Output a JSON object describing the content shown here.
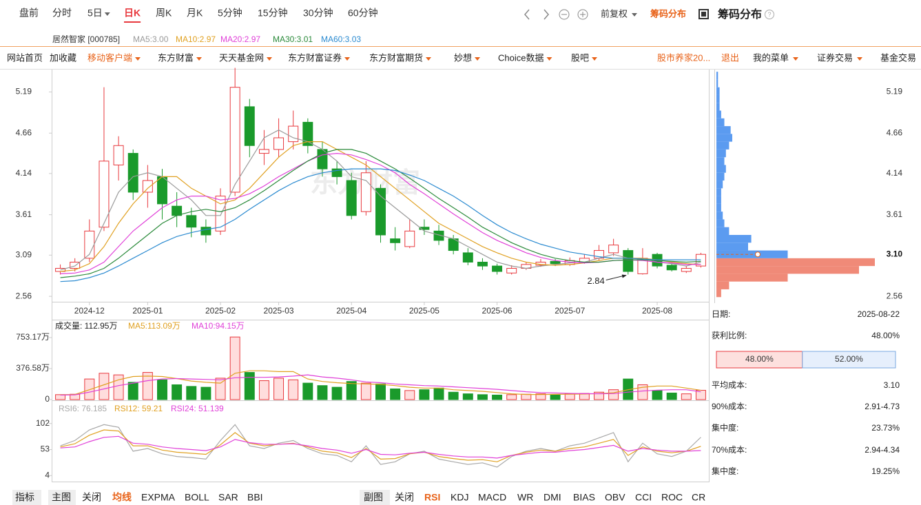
{
  "tabs": {
    "items": [
      "盘前",
      "分时",
      "5日",
      "日K",
      "周K",
      "月K",
      "5分钟",
      "15分钟",
      "30分钟",
      "60分钟"
    ],
    "active": 3
  },
  "toolbar": {
    "adjust": "前复权",
    "chip_toggle": "筹码分布",
    "panel_title": "筹码分布"
  },
  "stock": "居然智家 [000785]",
  "nav": {
    "left": [
      "网站首页",
      "加收藏",
      "移动客户端",
      "东方财富",
      "天天基金网",
      "东方财富证券",
      "东方财富期货",
      "妙想",
      "Choice数据",
      "股吧"
    ],
    "right": [
      "股市养家20...",
      "退出",
      "我的菜单",
      "证券交易",
      "基金交易"
    ]
  },
  "chart_data": [
    {
      "type": "candlestick",
      "watermark": "东方财富",
      "xlim": [
        -0.5,
        44.5
      ],
      "xticks": [
        {
          "value": 2,
          "label": "2024-12"
        },
        {
          "value": 6,
          "label": "2025-01"
        },
        {
          "value": 11,
          "label": "2025-02"
        },
        {
          "value": 15,
          "label": "2025-03"
        },
        {
          "value": 20,
          "label": "2025-04"
        },
        {
          "value": 25,
          "label": "2025-05"
        },
        {
          "value": 30,
          "label": "2025-06"
        },
        {
          "value": 35,
          "label": "2025-07"
        },
        {
          "value": 41,
          "label": "2025-08"
        }
      ],
      "ylim": [
        2.49,
        5.46
      ],
      "yticks": [
        2.56,
        3.09,
        3.61,
        4.14,
        4.66,
        5.19
      ],
      "grid": false,
      "up_color": "#e8383d",
      "down_color": "#1a9a2b",
      "open": [
        2.88,
        2.92,
        3.05,
        3.45,
        4.25,
        4.4,
        3.9,
        4.1,
        3.72,
        3.6,
        3.45,
        3.4,
        3.9,
        5.0,
        4.4,
        4.45,
        4.55,
        4.8,
        4.45,
        4.2,
        4.05,
        3.65,
        3.95,
        3.3,
        3.2,
        3.45,
        3.4,
        3.3,
        3.12,
        3.0,
        2.95,
        2.86,
        2.92,
        2.96,
        3.01,
        2.97,
        3.0,
        3.05,
        3.12,
        3.15,
        2.85,
        3.1,
        2.96,
        2.88,
        2.95
      ],
      "high": [
        2.97,
        3.05,
        3.55,
        5.25,
        4.62,
        4.45,
        4.25,
        4.2,
        3.9,
        3.7,
        3.55,
        3.95,
        5.5,
        5.1,
        4.7,
        4.85,
        4.95,
        4.85,
        4.55,
        4.3,
        4.15,
        4.3,
        4.0,
        3.45,
        3.55,
        3.55,
        3.48,
        3.35,
        3.18,
        3.05,
        2.98,
        2.96,
        3.0,
        3.04,
        3.04,
        3.06,
        3.1,
        3.22,
        3.3,
        3.18,
        3.18,
        3.12,
        2.98,
        2.95,
        3.12
      ],
      "low": [
        2.84,
        2.88,
        3.0,
        3.4,
        4.05,
        3.8,
        3.7,
        3.55,
        3.45,
        3.32,
        3.25,
        3.35,
        3.85,
        4.35,
        4.25,
        4.35,
        4.45,
        4.4,
        4.1,
        4.0,
        3.55,
        3.6,
        3.25,
        3.15,
        3.18,
        3.35,
        3.22,
        3.1,
        2.96,
        2.9,
        2.84,
        2.84,
        2.9,
        2.94,
        2.95,
        2.95,
        2.98,
        3.02,
        3.08,
        2.84,
        2.84,
        2.92,
        2.88,
        2.86,
        2.93
      ],
      "close": [
        2.92,
        3.0,
        3.4,
        4.3,
        4.5,
        3.9,
        4.05,
        3.75,
        3.6,
        3.45,
        3.35,
        3.85,
        5.25,
        4.5,
        4.45,
        4.6,
        4.75,
        4.5,
        4.2,
        4.1,
        3.6,
        4.15,
        3.35,
        3.25,
        3.4,
        3.42,
        3.28,
        3.15,
        3.0,
        2.95,
        2.88,
        2.92,
        2.97,
        3.0,
        2.98,
        3.02,
        3.05,
        3.15,
        3.22,
        2.88,
        3.05,
        2.95,
        2.9,
        2.92,
        3.1
      ],
      "ma": [
        {
          "label": "MA5:3.00",
          "color": "#9a9a9a",
          "values": [
            2.9,
            2.95,
            3.1,
            3.5,
            3.9,
            4.1,
            4.15,
            4.1,
            3.95,
            3.8,
            3.6,
            3.6,
            4.0,
            4.3,
            4.6,
            4.7,
            4.6,
            4.55,
            4.45,
            4.3,
            4.1,
            4.05,
            3.85,
            3.7,
            3.55,
            3.4,
            3.35,
            3.3,
            3.2,
            3.1,
            3.0,
            2.95,
            2.92,
            2.95,
            2.97,
            2.99,
            3.0,
            3.05,
            3.1,
            3.05,
            3.05,
            3.0,
            2.98,
            2.95,
            3.0
          ]
        },
        {
          "label": "MA10:2.97",
          "color": "#e0a020",
          "values": [
            2.88,
            2.9,
            2.98,
            3.2,
            3.5,
            3.75,
            3.95,
            4.1,
            4.1,
            3.95,
            3.85,
            3.75,
            3.8,
            3.95,
            4.15,
            4.35,
            4.5,
            4.55,
            4.55,
            4.45,
            4.35,
            4.25,
            4.1,
            3.95,
            3.8,
            3.65,
            3.5,
            3.4,
            3.3,
            3.2,
            3.12,
            3.05,
            3.0,
            2.97,
            2.96,
            2.97,
            2.99,
            3.02,
            3.05,
            3.05,
            3.05,
            3.03,
            3.0,
            2.98,
            2.97
          ]
        },
        {
          "label": "MA20:2.97",
          "color": "#e040d8",
          "values": [
            2.85,
            2.86,
            2.9,
            3.0,
            3.2,
            3.4,
            3.55,
            3.7,
            3.8,
            3.85,
            3.85,
            3.8,
            3.82,
            3.88,
            3.98,
            4.1,
            4.2,
            4.3,
            4.38,
            4.4,
            4.38,
            4.32,
            4.25,
            4.15,
            4.0,
            3.88,
            3.75,
            3.62,
            3.5,
            3.38,
            3.28,
            3.2,
            3.12,
            3.06,
            3.02,
            3.0,
            2.99,
            3.0,
            3.02,
            3.03,
            3.02,
            3.0,
            2.99,
            2.97,
            2.97
          ]
        },
        {
          "label": "MA30:3.01",
          "color": "#2a8a3a",
          "values": [
            2.8,
            2.82,
            2.85,
            2.92,
            3.05,
            3.2,
            3.35,
            3.5,
            3.6,
            3.65,
            3.68,
            3.65,
            3.7,
            3.8,
            3.92,
            4.05,
            4.18,
            4.3,
            4.4,
            4.45,
            4.45,
            4.4,
            4.3,
            4.2,
            4.08,
            3.95,
            3.82,
            3.7,
            3.58,
            3.45,
            3.35,
            3.25,
            3.17,
            3.1,
            3.05,
            3.02,
            3.0,
            3.0,
            3.02,
            3.03,
            3.03,
            3.02,
            3.01,
            3.0,
            3.01
          ]
        },
        {
          "label": "MA60:3.03",
          "color": "#2a8ad0",
          "values": [
            2.75,
            2.76,
            2.8,
            2.86,
            2.95,
            3.05,
            3.15,
            3.25,
            3.33,
            3.38,
            3.42,
            3.45,
            3.55,
            3.68,
            3.8,
            3.92,
            4.02,
            4.1,
            4.15,
            4.18,
            4.2,
            4.2,
            4.2,
            4.18,
            4.12,
            4.05,
            3.95,
            3.85,
            3.73,
            3.6,
            3.48,
            3.38,
            3.3,
            3.23,
            3.18,
            3.13,
            3.1,
            3.07,
            3.05,
            3.05,
            3.04,
            3.03,
            3.03,
            3.03,
            3.03
          ]
        }
      ],
      "annotation": {
        "x": 39,
        "value": 2.84
      }
    },
    {
      "type": "bar",
      "legend": "成交量: 112.95万",
      "ylim": [
        0,
        820
      ],
      "yticks": [
        0,
        {
          "value": 376.58,
          "label": "376.58万"
        },
        {
          "value": 753.17,
          "label": "753.17万"
        }
      ],
      "values": [
        60,
        65,
        250,
        320,
        300,
        210,
        330,
        240,
        180,
        160,
        150,
        260,
        760,
        330,
        230,
        260,
        240,
        200,
        170,
        150,
        220,
        200,
        190,
        130,
        110,
        120,
        140,
        90,
        70,
        60,
        55,
        60,
        65,
        70,
        60,
        70,
        75,
        90,
        120,
        250,
        180,
        110,
        80,
        70,
        112.95
      ],
      "ma": [
        {
          "label": "MA5:113.09万",
          "color": "#e0a020",
          "values": [
            60,
            62,
            120,
            180,
            240,
            280,
            285,
            280,
            255,
            225,
            210,
            200,
            320,
            350,
            350,
            340,
            340,
            250,
            220,
            205,
            195,
            190,
            185,
            170,
            150,
            140,
            140,
            120,
            110,
            100,
            85,
            70,
            62,
            62,
            64,
            65,
            68,
            73,
            83,
            120,
            150,
            165,
            165,
            140,
            113.09
          ]
        },
        {
          "label": "MA10:94.15万",
          "color": "#e040d8",
          "values": [
            55,
            58,
            90,
            130,
            170,
            200,
            230,
            250,
            255,
            250,
            245,
            240,
            265,
            270,
            270,
            275,
            285,
            300,
            275,
            260,
            240,
            215,
            205,
            190,
            180,
            170,
            165,
            155,
            145,
            135,
            125,
            110,
            95,
            85,
            80,
            75,
            72,
            71,
            73,
            90,
            105,
            115,
            120,
            120,
            94.15
          ]
        }
      ]
    },
    {
      "type": "line",
      "ylim": [
        -6,
        116
      ],
      "yticks": [
        4,
        53,
        102
      ],
      "series": [
        {
          "name": "RSI6: 76.185",
          "color": "#a8a8a8",
          "values": [
            60,
            70,
            90,
            100,
            95,
            50,
            55,
            45,
            40,
            38,
            35,
            70,
            100,
            60,
            55,
            65,
            70,
            55,
            45,
            42,
            30,
            60,
            25,
            30,
            45,
            50,
            35,
            30,
            25,
            28,
            20,
            40,
            50,
            55,
            50,
            60,
            65,
            75,
            85,
            30,
            65,
            45,
            40,
            50,
            76.185
          ]
        },
        {
          "name": "RSI12: 59.21",
          "color": "#e0a020",
          "values": [
            58,
            64,
            80,
            90,
            88,
            60,
            60,
            52,
            48,
            46,
            44,
            62,
            85,
            65,
            60,
            63,
            65,
            58,
            50,
            47,
            38,
            55,
            35,
            36,
            45,
            48,
            40,
            36,
            33,
            34,
            30,
            42,
            48,
            52,
            50,
            55,
            58,
            65,
            72,
            42,
            58,
            50,
            47,
            50,
            59.21
          ]
        },
        {
          "name": "RSI24: 51.139",
          "color": "#e040d8",
          "values": [
            56,
            58,
            68,
            76,
            78,
            65,
            63,
            58,
            55,
            53,
            51,
            58,
            72,
            66,
            63,
            63,
            64,
            60,
            55,
            52,
            46,
            53,
            44,
            43,
            46,
            48,
            44,
            41,
            39,
            39,
            37,
            42,
            45,
            48,
            48,
            51,
            53,
            57,
            61,
            50,
            55,
            52,
            50,
            50,
            51.139
          ]
        }
      ]
    },
    {
      "type": "chip_distribution",
      "bins": [
        2.6,
        2.7,
        2.8,
        2.9,
        3.0,
        3.1,
        3.2,
        3.3,
        3.4,
        3.5,
        3.6,
        3.7,
        3.8,
        3.9,
        4.0,
        4.1,
        4.2,
        4.3,
        4.4,
        4.5,
        4.6,
        4.7,
        4.8,
        4.9,
        5.0,
        5.1,
        5.2,
        5.3,
        5.4
      ],
      "values": [
        3,
        8,
        45,
        90,
        100,
        45,
        20,
        22,
        8,
        5,
        4,
        3,
        3,
        3,
        4,
        5,
        6,
        5,
        6,
        8,
        10,
        9,
        5,
        3,
        2,
        2,
        2,
        1,
        1
      ],
      "xlim": [
        0,
        100
      ],
      "profit_color": "#f08a78",
      "loss_color": "#5b9bf0",
      "current": {
        "value": 3.1,
        "label": "3.10"
      }
    }
  ],
  "info": {
    "rows": [
      {
        "label": "日期:",
        "value": "2025-08-22"
      },
      {
        "label": "获利比例:",
        "value": "48.00%"
      },
      {
        "label": "平均成本:",
        "value": "3.10"
      },
      {
        "label": "90%成本:",
        "value": "2.91-4.73"
      },
      {
        "label": "集中度:",
        "value": "23.73%"
      },
      {
        "label": "70%成本:",
        "value": "2.94-4.34"
      },
      {
        "label": "集中度:",
        "value": "19.25%"
      }
    ]
  },
  "profit_bar": {
    "values": [
      48,
      52
    ],
    "value_labels": [
      "48.00%",
      "52.00%"
    ],
    "colors": [
      "#fde0de",
      "#e6effc"
    ]
  },
  "indicator_bar": {
    "left": [
      "指标",
      "主图",
      "关闭",
      "均线",
      "EXPMA",
      "BOLL",
      "SAR",
      "BBI"
    ],
    "left_active": 3,
    "right": [
      "副图",
      "关闭",
      "RSI",
      "KDJ",
      "MACD",
      "WR",
      "DMI",
      "BIAS",
      "OBV",
      "CCI",
      "ROC",
      "CR"
    ],
    "right_active": 2
  }
}
